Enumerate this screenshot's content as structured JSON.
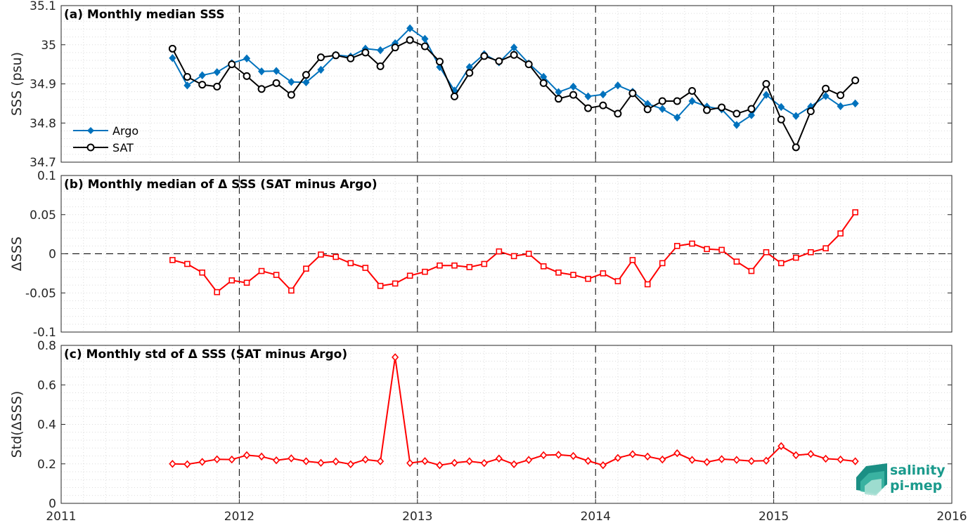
{
  "logo": {
    "line1": "salinity",
    "line2": "pi-mep"
  },
  "x_axis": {
    "range": [
      2011,
      2016
    ],
    "ticks": [
      2011,
      2012,
      2013,
      2014,
      2015,
      2016
    ],
    "tick_labels": [
      "2011",
      "2012",
      "2013",
      "2014",
      "2015",
      "2016"
    ]
  },
  "colors": {
    "argo": "#0072bd",
    "sat": "#000000",
    "delta": "#ff0000"
  },
  "chart_data": [
    {
      "type": "line",
      "title": "(a) Monthly median SSS",
      "ylabel": "SSS (psu)",
      "ylim": [
        34.7,
        35.1
      ],
      "yticks": [
        34.7,
        34.8,
        34.9,
        35,
        35.1
      ],
      "ytick_labels": [
        "34.7",
        "34.8",
        "34.9",
        "35",
        "35.1"
      ],
      "vlines": [
        2012,
        2013,
        2014,
        2015
      ],
      "legend_position": "lower-left",
      "grid": true,
      "series": [
        {
          "name": "Argo",
          "marker": "diamond",
          "x": [
            2011.625,
            2011.708,
            2011.792,
            2011.875,
            2011.958,
            2012.042,
            2012.125,
            2012.208,
            2012.292,
            2012.375,
            2012.458,
            2012.542,
            2012.625,
            2012.708,
            2012.792,
            2012.875,
            2012.958,
            2013.042,
            2013.125,
            2013.208,
            2013.292,
            2013.375,
            2013.458,
            2013.542,
            2013.625,
            2013.708,
            2013.792,
            2013.875,
            2013.958,
            2014.042,
            2014.125,
            2014.208,
            2014.292,
            2014.375,
            2014.458,
            2014.542,
            2014.625,
            2014.708,
            2014.792,
            2014.875,
            2014.958,
            2015.042,
            2015.125,
            2015.208,
            2015.292,
            2015.375,
            2015.458
          ],
          "y": [
            34.966,
            34.896,
            34.922,
            34.93,
            34.953,
            34.965,
            34.932,
            34.933,
            34.905,
            34.904,
            34.936,
            34.974,
            34.97,
            34.99,
            34.986,
            35.004,
            35.042,
            35.015,
            34.943,
            34.883,
            34.943,
            34.976,
            34.955,
            34.993,
            34.952,
            34.918,
            34.879,
            34.893,
            34.868,
            34.873,
            34.896,
            34.88,
            34.849,
            34.836,
            34.814,
            34.856,
            34.842,
            34.835,
            34.795,
            34.82,
            34.872,
            34.841,
            34.818,
            34.842,
            34.869,
            34.843,
            34.85
          ]
        },
        {
          "name": "SAT",
          "marker": "circle",
          "x": [
            2011.625,
            2011.708,
            2011.792,
            2011.875,
            2011.958,
            2012.042,
            2012.125,
            2012.208,
            2012.292,
            2012.375,
            2012.458,
            2012.542,
            2012.625,
            2012.708,
            2012.792,
            2012.875,
            2012.958,
            2013.042,
            2013.125,
            2013.208,
            2013.292,
            2013.375,
            2013.458,
            2013.542,
            2013.625,
            2013.708,
            2013.792,
            2013.875,
            2013.958,
            2014.042,
            2014.125,
            2014.208,
            2014.292,
            2014.375,
            2014.458,
            2014.542,
            2014.625,
            2014.708,
            2014.792,
            2014.875,
            2014.958,
            2015.042,
            2015.125,
            2015.208,
            2015.292,
            2015.375,
            2015.458
          ],
          "y": [
            34.99,
            34.918,
            34.898,
            34.893,
            34.95,
            34.92,
            34.887,
            34.902,
            34.872,
            34.923,
            34.968,
            34.973,
            34.965,
            34.98,
            34.945,
            34.993,
            35.012,
            34.996,
            34.957,
            34.868,
            34.928,
            34.971,
            34.958,
            34.974,
            34.95,
            34.902,
            34.862,
            34.872,
            34.838,
            34.845,
            34.824,
            34.876,
            34.835,
            34.856,
            34.856,
            34.882,
            34.833,
            34.84,
            34.824,
            34.836,
            34.9,
            34.809,
            34.738,
            34.83,
            34.888,
            34.871,
            34.909
          ]
        }
      ]
    },
    {
      "type": "line",
      "title": "(b) Monthly median of Δ SSS (SAT minus Argo)",
      "ylabel": "ΔSSS",
      "ylim": [
        -0.1,
        0.1
      ],
      "yticks": [
        -0.1,
        -0.05,
        0,
        0.05,
        0.1
      ],
      "ytick_labels": [
        "-0.1",
        "-0.05",
        "0",
        "0.05",
        "0.1"
      ],
      "vlines": [
        2012,
        2013,
        2014,
        2015
      ],
      "hline": 0,
      "grid": true,
      "series": [
        {
          "marker": "square",
          "x": [
            2011.625,
            2011.708,
            2011.792,
            2011.875,
            2011.958,
            2012.042,
            2012.125,
            2012.208,
            2012.292,
            2012.375,
            2012.458,
            2012.542,
            2012.625,
            2012.708,
            2012.792,
            2012.875,
            2012.958,
            2013.042,
            2013.125,
            2013.208,
            2013.292,
            2013.375,
            2013.458,
            2013.542,
            2013.625,
            2013.708,
            2013.792,
            2013.875,
            2013.958,
            2014.042,
            2014.125,
            2014.208,
            2014.292,
            2014.375,
            2014.458,
            2014.542,
            2014.625,
            2014.708,
            2014.792,
            2014.875,
            2014.958,
            2015.042,
            2015.125,
            2015.208,
            2015.292,
            2015.375,
            2015.458
          ],
          "y": [
            -0.008,
            -0.013,
            -0.024,
            -0.049,
            -0.034,
            -0.037,
            -0.022,
            -0.027,
            -0.047,
            -0.019,
            -0.001,
            -0.004,
            -0.012,
            -0.018,
            -0.041,
            -0.038,
            -0.028,
            -0.023,
            -0.015,
            -0.015,
            -0.017,
            -0.013,
            0.003,
            -0.003,
            0.0,
            -0.016,
            -0.024,
            -0.027,
            -0.032,
            -0.025,
            -0.035,
            -0.008,
            -0.039,
            -0.012,
            0.01,
            0.013,
            0.006,
            0.005,
            -0.01,
            -0.022,
            0.002,
            -0.012,
            -0.005,
            0.002,
            0.007,
            0.026,
            0.053
          ]
        }
      ]
    },
    {
      "type": "line",
      "title": "(c) Monthly std of Δ SSS (SAT minus Argo)",
      "ylabel": "Std(ΔSSS)",
      "ylim": [
        0,
        0.8
      ],
      "yticks": [
        0,
        0.2,
        0.4,
        0.6,
        0.8
      ],
      "ytick_labels": [
        "0",
        "0.2",
        "0.4",
        "0.6",
        "0.8"
      ],
      "vlines": [
        2012,
        2013,
        2014,
        2015
      ],
      "grid": true,
      "series": [
        {
          "marker": "diamond",
          "x": [
            2011.625,
            2011.708,
            2011.792,
            2011.875,
            2011.958,
            2012.042,
            2012.125,
            2012.208,
            2012.292,
            2012.375,
            2012.458,
            2012.542,
            2012.625,
            2012.708,
            2012.792,
            2012.875,
            2012.958,
            2013.042,
            2013.125,
            2013.208,
            2013.292,
            2013.375,
            2013.458,
            2013.542,
            2013.625,
            2013.708,
            2013.792,
            2013.875,
            2013.958,
            2014.042,
            2014.125,
            2014.208,
            2014.292,
            2014.375,
            2014.458,
            2014.542,
            2014.625,
            2014.708,
            2014.792,
            2014.875,
            2014.958,
            2015.042,
            2015.125,
            2015.208,
            2015.292,
            2015.375,
            2015.458
          ],
          "y": [
            0.2,
            0.198,
            0.21,
            0.223,
            0.222,
            0.244,
            0.237,
            0.218,
            0.228,
            0.213,
            0.205,
            0.212,
            0.198,
            0.222,
            0.213,
            0.74,
            0.204,
            0.214,
            0.193,
            0.205,
            0.213,
            0.204,
            0.227,
            0.198,
            0.22,
            0.244,
            0.246,
            0.24,
            0.215,
            0.193,
            0.23,
            0.249,
            0.237,
            0.222,
            0.254,
            0.22,
            0.209,
            0.224,
            0.22,
            0.214,
            0.216,
            0.29,
            0.244,
            0.25,
            0.226,
            0.222,
            0.213
          ]
        }
      ]
    }
  ]
}
